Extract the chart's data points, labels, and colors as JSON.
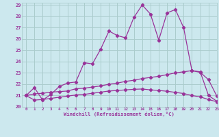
{
  "xlabel": "Windchill (Refroidissement éolien,°C)",
  "bg_color": "#cce8ee",
  "grid_color": "#aacccc",
  "line_color": "#993399",
  "xlim": [
    -0.5,
    23
  ],
  "ylim": [
    20,
    29.2
  ],
  "yticks": [
    20,
    21,
    22,
    23,
    24,
    25,
    26,
    27,
    28,
    29
  ],
  "xticks": [
    0,
    1,
    2,
    3,
    4,
    5,
    6,
    7,
    8,
    9,
    10,
    11,
    12,
    13,
    14,
    15,
    16,
    17,
    18,
    19,
    20,
    21,
    22,
    23
  ],
  "line1_x": [
    0,
    1,
    2,
    3,
    4,
    5,
    6,
    7,
    8,
    9,
    10,
    11,
    12,
    13,
    14,
    15,
    16,
    17,
    18,
    19,
    20,
    21,
    22,
    23
  ],
  "line1_y": [
    21.0,
    21.7,
    20.6,
    21.1,
    21.8,
    22.1,
    22.2,
    23.9,
    23.8,
    25.1,
    26.7,
    26.3,
    26.1,
    27.9,
    29.0,
    28.2,
    25.9,
    28.3,
    28.6,
    27.0,
    23.2,
    23.1,
    21.0,
    20.5
  ],
  "line2_x": [
    0,
    1,
    2,
    3,
    4,
    5,
    6,
    7,
    8,
    9,
    10,
    11,
    12,
    13,
    14,
    15,
    16,
    17,
    18,
    19,
    20,
    21,
    22,
    23
  ],
  "line2_y": [
    21.0,
    21.15,
    21.2,
    21.3,
    21.35,
    21.4,
    21.6,
    21.65,
    21.75,
    21.85,
    22.0,
    22.1,
    22.25,
    22.35,
    22.5,
    22.6,
    22.7,
    22.85,
    23.0,
    23.1,
    23.2,
    23.05,
    22.4,
    20.95
  ],
  "line3_x": [
    0,
    1,
    2,
    3,
    4,
    5,
    6,
    7,
    8,
    9,
    10,
    11,
    12,
    13,
    14,
    15,
    16,
    17,
    18,
    19,
    20,
    21,
    22,
    23
  ],
  "line3_y": [
    21.0,
    20.6,
    20.65,
    20.75,
    20.85,
    20.95,
    21.05,
    21.1,
    21.2,
    21.3,
    21.4,
    21.45,
    21.5,
    21.55,
    21.58,
    21.5,
    21.45,
    21.38,
    21.28,
    21.18,
    21.0,
    20.88,
    20.65,
    20.45
  ]
}
